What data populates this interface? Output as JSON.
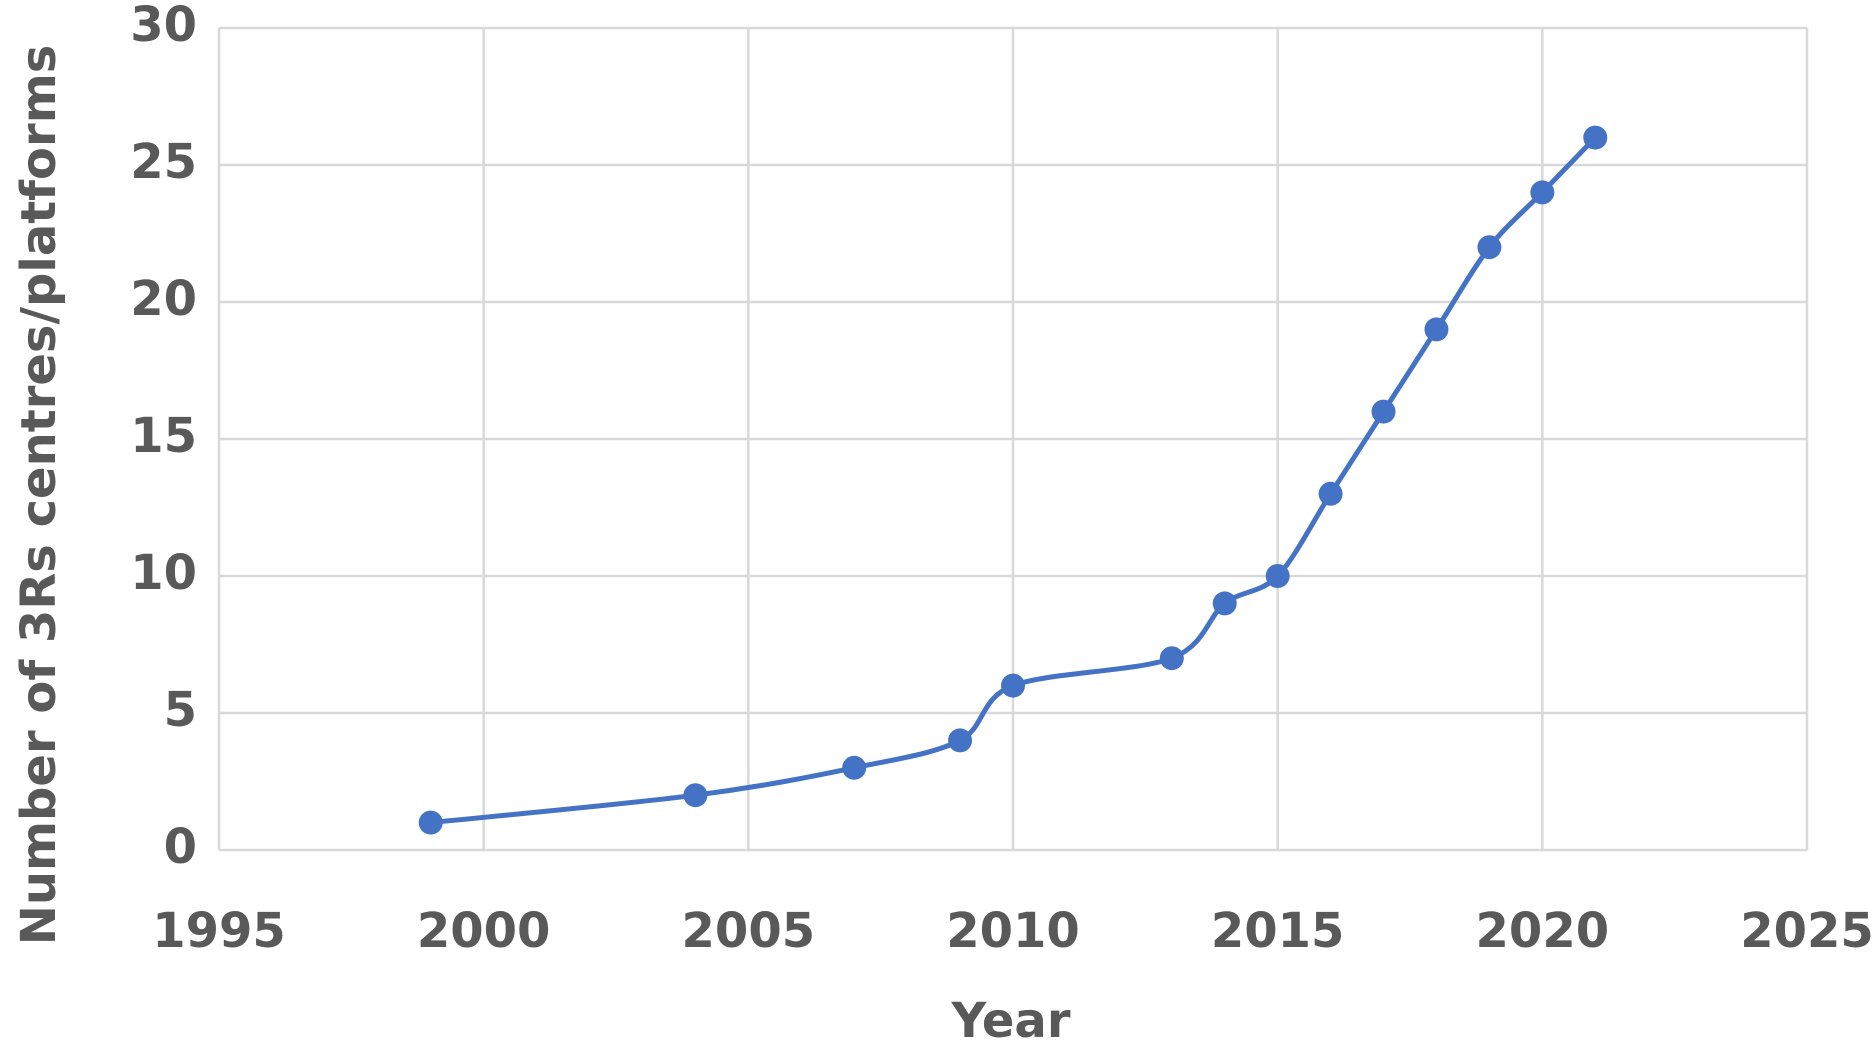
{
  "chart_data": {
    "type": "line",
    "x_label": "Year",
    "y_label": "Number of 3Rs centres/platforms",
    "x": [
      1999,
      2004,
      2007,
      2009,
      2010,
      2013,
      2014,
      2015,
      2016,
      2017,
      2018,
      2019,
      2020,
      2021
    ],
    "series": [
      {
        "name": "Number of 3Rs centres/platforms",
        "color": "#4472c4",
        "values": [
          1,
          2,
          3,
          4,
          6,
          7,
          9,
          10,
          13,
          16,
          19,
          22,
          24,
          26
        ]
      }
    ],
    "xlim": [
      1995,
      2025
    ],
    "xticks": [
      1995,
      2000,
      2005,
      2010,
      2015,
      2020,
      2025
    ],
    "ylim": [
      0,
      30
    ],
    "yticks": [
      0,
      5,
      10,
      15,
      20,
      25,
      30
    ],
    "grid": true
  }
}
